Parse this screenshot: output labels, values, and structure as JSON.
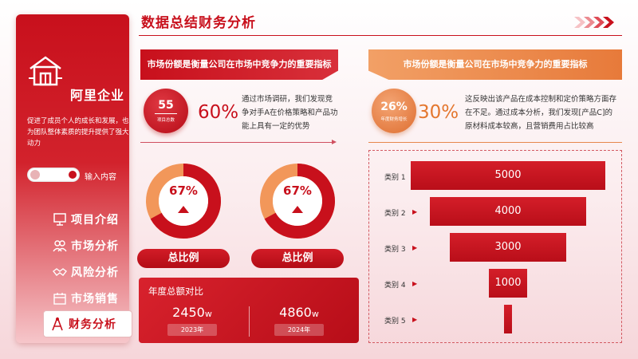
{
  "sidebar": {
    "brand": "阿里企业",
    "tagline": "促进了成员个人的成长和发展，也为团队整体素质的提升提供了强大动力",
    "toggle_label": "输入内容",
    "menu": [
      {
        "label": "项目介绍",
        "icon": "presentation-icon",
        "active": false
      },
      {
        "label": "市场分析",
        "icon": "team-icon",
        "active": false
      },
      {
        "label": "风险分析",
        "icon": "handshake-icon",
        "active": false
      },
      {
        "label": "市场销售",
        "icon": "calendar-icon",
        "active": false
      },
      {
        "label": "财务分析",
        "icon": "compass-icon",
        "active": true
      }
    ]
  },
  "header": {
    "title": "数据总结财务分析"
  },
  "left_section": {
    "banner": "市场份额是衡量公司在市场中竞争力的重要指标",
    "stat_value": "55",
    "stat_label": "项目总数",
    "percent": "60%",
    "description": "通过市场调研，我们发现竞争对手A在价格策略和产品功能上具有一定的优势",
    "donuts": [
      {
        "value": "67%",
        "fraction": 0.67,
        "label": "总比例"
      },
      {
        "value": "67%",
        "fraction": 0.67,
        "label": "总比例"
      }
    ],
    "comparison": {
      "title": "年度总额对比",
      "items": [
        {
          "amount": "2450",
          "unit": "w",
          "year": "2023年"
        },
        {
          "amount": "4860",
          "unit": "w",
          "year": "2024年"
        }
      ]
    }
  },
  "right_section": {
    "banner": "市场份额是衡量公司在市场中竞争力的重要指标",
    "stat_value": "26%",
    "stat_label": "年度财务增长",
    "percent": "30%",
    "description": "这反映出该产品在成本控制和定价策略方面存在不足。通过成本分析，我们发现[产品C]的原材料成本较高，且营销费用占比较高"
  },
  "chart_data": {
    "type": "bar",
    "categories": [
      "类别 1",
      "类别 2",
      "类别 3",
      "类别 4",
      "类别 5"
    ],
    "values": [
      5000,
      4000,
      3000,
      1000,
      200
    ],
    "value_labels": [
      "5000",
      "4000",
      "3000",
      "1000",
      ""
    ]
  },
  "colors": {
    "primary": "#c8101c",
    "accent_orange": "#e4772f",
    "donut_light": "#f2975a"
  }
}
